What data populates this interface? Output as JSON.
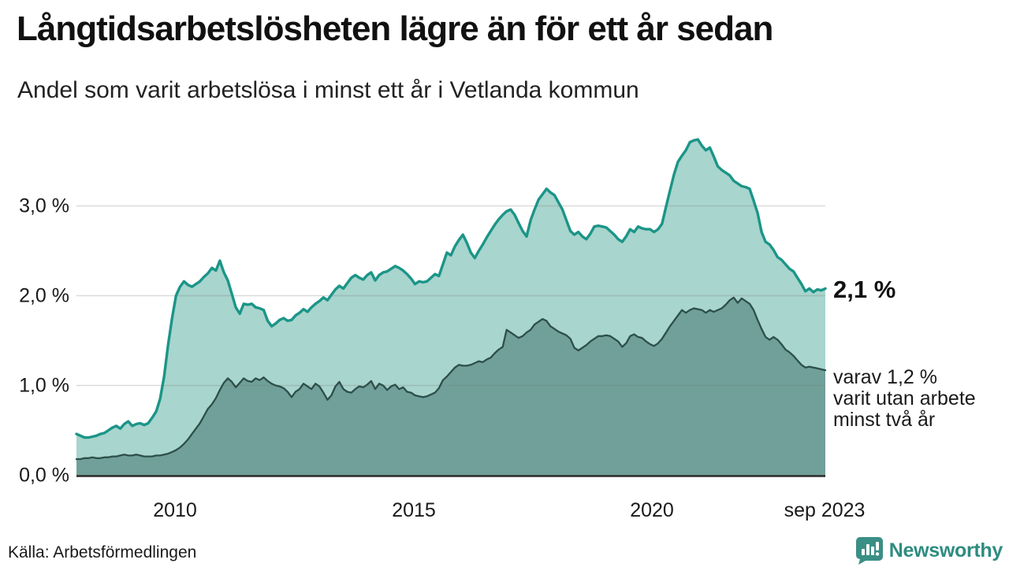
{
  "header": {
    "title": "Långtidsarbetslösheten lägre än för ett år sedan",
    "subtitle": "Andel som varit arbetslösa i minst ett år i Vetlanda kommun"
  },
  "chart_data": {
    "type": "area",
    "title": "Långtidsarbetslösheten lägre än för ett år sedan",
    "subtitle": "Andel som varit arbetslösa i minst ett år i Vetlanda kommun",
    "x_unit": "month",
    "x_range": [
      "jan 2008",
      "sep 2023"
    ],
    "ylim": [
      0,
      3.9
    ],
    "grid": true,
    "y_gridlines": [
      1,
      2,
      3
    ],
    "y_tick_labels": [
      "3,0 %",
      "2,0 %",
      "1,0 %",
      "0,0 %"
    ],
    "x_tick_labels": [
      "2010",
      "2015",
      "2020",
      "sep 2023"
    ],
    "x_tick_years": [
      2010,
      2015,
      2020,
      2023.667
    ],
    "series": [
      {
        "name": "Arbetslösa minst ett år",
        "line_color": "#1b9588",
        "fill_color": "#a8d5cd",
        "end_value_label": "2,1 %",
        "values": [
          0.46,
          0.44,
          0.42,
          0.42,
          0.43,
          0.44,
          0.46,
          0.47,
          0.5,
          0.53,
          0.55,
          0.52,
          0.57,
          0.6,
          0.55,
          0.57,
          0.58,
          0.56,
          0.58,
          0.64,
          0.71,
          0.85,
          1.1,
          1.45,
          1.75,
          2.0,
          2.1,
          2.16,
          2.12,
          2.1,
          2.13,
          2.16,
          2.21,
          2.25,
          2.31,
          2.28,
          2.39,
          2.26,
          2.17,
          2.02,
          1.87,
          1.8,
          1.91,
          1.9,
          1.91,
          1.87,
          1.86,
          1.84,
          1.72,
          1.66,
          1.69,
          1.73,
          1.75,
          1.72,
          1.73,
          1.78,
          1.81,
          1.85,
          1.82,
          1.87,
          1.91,
          1.94,
          1.98,
          1.95,
          2.01,
          2.07,
          2.11,
          2.08,
          2.14,
          2.2,
          2.23,
          2.2,
          2.18,
          2.23,
          2.26,
          2.17,
          2.23,
          2.26,
          2.27,
          2.3,
          2.33,
          2.31,
          2.28,
          2.24,
          2.19,
          2.13,
          2.16,
          2.15,
          2.16,
          2.2,
          2.24,
          2.22,
          2.35,
          2.48,
          2.45,
          2.55,
          2.62,
          2.68,
          2.59,
          2.48,
          2.42,
          2.5,
          2.57,
          2.65,
          2.72,
          2.79,
          2.85,
          2.9,
          2.94,
          2.96,
          2.9,
          2.81,
          2.72,
          2.66,
          2.84,
          2.96,
          3.07,
          3.13,
          3.19,
          3.15,
          3.12,
          3.04,
          2.96,
          2.84,
          2.72,
          2.68,
          2.71,
          2.66,
          2.63,
          2.69,
          2.77,
          2.78,
          2.77,
          2.76,
          2.72,
          2.68,
          2.63,
          2.6,
          2.66,
          2.74,
          2.71,
          2.77,
          2.75,
          2.74,
          2.74,
          2.71,
          2.74,
          2.8,
          2.99,
          3.17,
          3.35,
          3.49,
          3.56,
          3.62,
          3.71,
          3.73,
          3.74,
          3.67,
          3.62,
          3.65,
          3.55,
          3.44,
          3.4,
          3.37,
          3.34,
          3.28,
          3.25,
          3.22,
          3.21,
          3.19,
          3.06,
          2.92,
          2.71,
          2.6,
          2.57,
          2.51,
          2.43,
          2.4,
          2.35,
          2.3,
          2.27,
          2.2,
          2.13,
          2.05,
          2.08,
          2.04,
          2.07,
          2.06,
          2.08
        ]
      },
      {
        "name": "Arbetslösa minst två år",
        "line_color": "#2d4f4b",
        "fill_color": "#70a099",
        "end_value_label": "1,2 %",
        "values": [
          0.18,
          0.18,
          0.19,
          0.19,
          0.2,
          0.19,
          0.19,
          0.2,
          0.2,
          0.21,
          0.21,
          0.22,
          0.23,
          0.22,
          0.22,
          0.23,
          0.22,
          0.21,
          0.21,
          0.21,
          0.22,
          0.22,
          0.23,
          0.24,
          0.26,
          0.28,
          0.31,
          0.35,
          0.4,
          0.46,
          0.52,
          0.58,
          0.66,
          0.74,
          0.79,
          0.86,
          0.95,
          1.03,
          1.08,
          1.04,
          0.98,
          1.03,
          1.08,
          1.05,
          1.04,
          1.08,
          1.06,
          1.09,
          1.05,
          1.02,
          1.0,
          0.99,
          0.97,
          0.93,
          0.87,
          0.93,
          0.96,
          1.02,
          0.99,
          0.96,
          1.02,
          0.99,
          0.92,
          0.84,
          0.89,
          0.99,
          1.04,
          0.96,
          0.93,
          0.92,
          0.96,
          0.99,
          0.98,
          1.01,
          1.05,
          0.96,
          1.02,
          1.0,
          0.95,
          0.99,
          1.01,
          0.96,
          0.98,
          0.93,
          0.92,
          0.89,
          0.88,
          0.87,
          0.88,
          0.9,
          0.92,
          0.97,
          1.06,
          1.1,
          1.15,
          1.2,
          1.23,
          1.22,
          1.22,
          1.23,
          1.25,
          1.27,
          1.26,
          1.29,
          1.31,
          1.36,
          1.4,
          1.43,
          1.62,
          1.59,
          1.56,
          1.53,
          1.55,
          1.59,
          1.62,
          1.68,
          1.71,
          1.74,
          1.72,
          1.66,
          1.63,
          1.6,
          1.58,
          1.56,
          1.52,
          1.42,
          1.39,
          1.42,
          1.45,
          1.49,
          1.52,
          1.55,
          1.55,
          1.56,
          1.55,
          1.52,
          1.49,
          1.43,
          1.47,
          1.55,
          1.57,
          1.54,
          1.53,
          1.49,
          1.46,
          1.44,
          1.47,
          1.52,
          1.59,
          1.66,
          1.72,
          1.78,
          1.84,
          1.81,
          1.84,
          1.86,
          1.85,
          1.84,
          1.81,
          1.84,
          1.82,
          1.84,
          1.86,
          1.9,
          1.95,
          1.98,
          1.92,
          1.97,
          1.94,
          1.91,
          1.84,
          1.73,
          1.63,
          1.54,
          1.51,
          1.54,
          1.51,
          1.46,
          1.4,
          1.37,
          1.33,
          1.28,
          1.23,
          1.2,
          1.21,
          1.2,
          1.19,
          1.18,
          1.17
        ]
      }
    ],
    "annotations": {
      "end_big": "2,1 %",
      "end_line1": "varav 1,2 %",
      "end_line2": "varit utan arbete",
      "end_line3": "minst två år"
    }
  },
  "colors": {
    "line_1plus": "#1b9588",
    "fill_1plus": "#a8d5cd",
    "line_2plus": "#2d4f4b",
    "fill_2plus": "#70a099",
    "grid": "#e0e0e0",
    "baseline": "#2b2b2b",
    "brand_teal": "#2e8c80",
    "logo_bg": "#3a8f85"
  },
  "footer": {
    "source": "Källa: Arbetsförmedlingen",
    "brand": "Newsworthy"
  }
}
